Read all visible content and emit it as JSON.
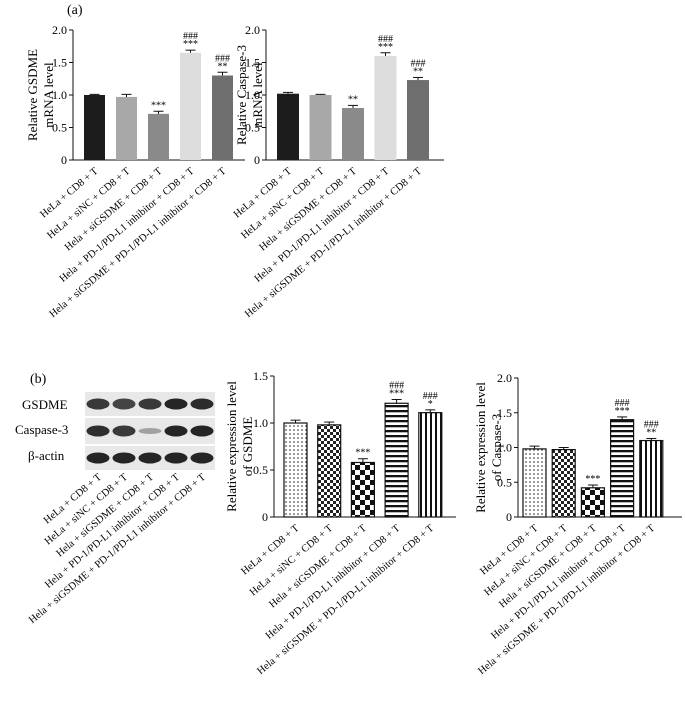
{
  "panel_labels": [
    "(a)",
    "(b)"
  ],
  "western_blot": {
    "bands": [
      "GSDME",
      "Caspase-3",
      "β-actin"
    ],
    "lanes": [
      "HeLa + CD8 + T",
      "HeLa + siNC + CD8 + T",
      "Hela + siGSDME + CD8 + T",
      "Hela + PD-1/PD-L1 inhibitor + CD8 + T",
      "Hela + siGSDME + PD-1/PD-L1 inhibitor + CD8 + T"
    ],
    "colors": {
      "band": "#1a1a1a",
      "membrane": "#e8e8e8"
    }
  },
  "chart_data": [
    {
      "id": "a1",
      "type": "bar",
      "panel": "(a)",
      "ylabel": [
        "Relative GSDME",
        "mRNA level"
      ],
      "ylim": [
        0,
        2.0
      ],
      "yticks": [
        "0",
        "0.5",
        "1.0",
        "1.5",
        "2.0"
      ],
      "categories": [
        "HeLa + CD8 + T",
        "HeLa + siNC + CD8 + T",
        "Hela + siGSDME + CD8 + T",
        "Hela + PD-1/PD-L1 inhibitor + CD8 + T",
        "Hela + siGSDME + PD-1/PD-L1 inhibitor + CD8 + T"
      ],
      "values": [
        1.0,
        0.97,
        0.71,
        1.65,
        1.3
      ],
      "errors": [
        0.01,
        0.04,
        0.04,
        0.04,
        0.05
      ],
      "annotations": [
        [],
        [],
        [
          "***"
        ],
        [
          "###",
          "***"
        ],
        [
          "###",
          "**"
        ]
      ],
      "colors": [
        "#1c1c1c",
        "#a8a8a8",
        "#8a8a8a",
        "#dcdcdc",
        "#6e6e6e"
      ]
    },
    {
      "id": "a2",
      "type": "bar",
      "panel": "(a)",
      "ylabel": [
        "Relative Caspase-3",
        "mRNA level"
      ],
      "ylim": [
        0,
        2.0
      ],
      "yticks": [
        "0",
        "0.5",
        "1.0",
        "1.5",
        "2.0"
      ],
      "categories": [
        "HeLa + CD8 + T",
        "HeLa + siNC + CD8 + T",
        "Hela + siGSDME + CD8 + T",
        "Hela + PD-1/PD-L1 inhibitor + CD8 + T",
        "Hela + siGSDME + PD-1/PD-L1 inhibitor + CD8 + T"
      ],
      "values": [
        1.02,
        1.0,
        0.8,
        1.6,
        1.23
      ],
      "errors": [
        0.02,
        0.01,
        0.04,
        0.05,
        0.04
      ],
      "annotations": [
        [],
        [],
        [
          "**"
        ],
        [
          "###",
          "***"
        ],
        [
          "###",
          "**"
        ]
      ],
      "colors": [
        "#1c1c1c",
        "#a8a8a8",
        "#8a8a8a",
        "#dcdcdc",
        "#6e6e6e"
      ]
    },
    {
      "id": "b1",
      "type": "bar",
      "panel": "(b)",
      "ylabel": [
        "Relative expression level",
        "of GSDME"
      ],
      "ylim": [
        0,
        1.5
      ],
      "yticks": [
        "0",
        "0.5",
        "1.0",
        "1.5"
      ],
      "categories": [
        "HeLa + CD8 + T",
        "HeLa + siNC + CD8 + T",
        "Hela + siGSDME + CD8 + T",
        "Hela + PD-1/PD-L1 inhibitor + CD8 + T",
        "Hela + siGSDME + PD-1/PD-L1 inhibitor + CD8 + T"
      ],
      "values": [
        1.0,
        0.98,
        0.58,
        1.21,
        1.11
      ],
      "errors": [
        0.03,
        0.03,
        0.04,
        0.04,
        0.03
      ],
      "annotations": [
        [],
        [],
        [
          "***"
        ],
        [
          "###",
          "***"
        ],
        [
          "###",
          "*"
        ]
      ],
      "patterns": [
        "dots",
        "checker-fine",
        "checker-large",
        "horizontal",
        "vertical"
      ]
    },
    {
      "id": "b2",
      "type": "bar",
      "panel": "(b)",
      "ylabel": [
        "Relative expression level",
        "of Caspase-3"
      ],
      "ylim": [
        0,
        2.0
      ],
      "yticks": [
        "0",
        "0.5",
        "1.0",
        "1.5",
        "2.0"
      ],
      "categories": [
        "HeLa + CD8 + T",
        "HeLa + siNC + CD8 + T",
        "Hela + siGSDME + CD8 + T",
        "Hela + PD-1/PD-L1 inhibitor + CD8 + T",
        "Hela + siGSDME + PD-1/PD-L1 inhibitor + CD8 + T"
      ],
      "values": [
        0.98,
        0.97,
        0.42,
        1.4,
        1.1
      ],
      "errors": [
        0.04,
        0.03,
        0.04,
        0.04,
        0.03
      ],
      "annotations": [
        [],
        [],
        [
          "***"
        ],
        [
          "###",
          "***"
        ],
        [
          "###",
          "**"
        ]
      ],
      "patterns": [
        "dots",
        "checker-fine",
        "checker-large",
        "horizontal",
        "vertical"
      ]
    }
  ]
}
